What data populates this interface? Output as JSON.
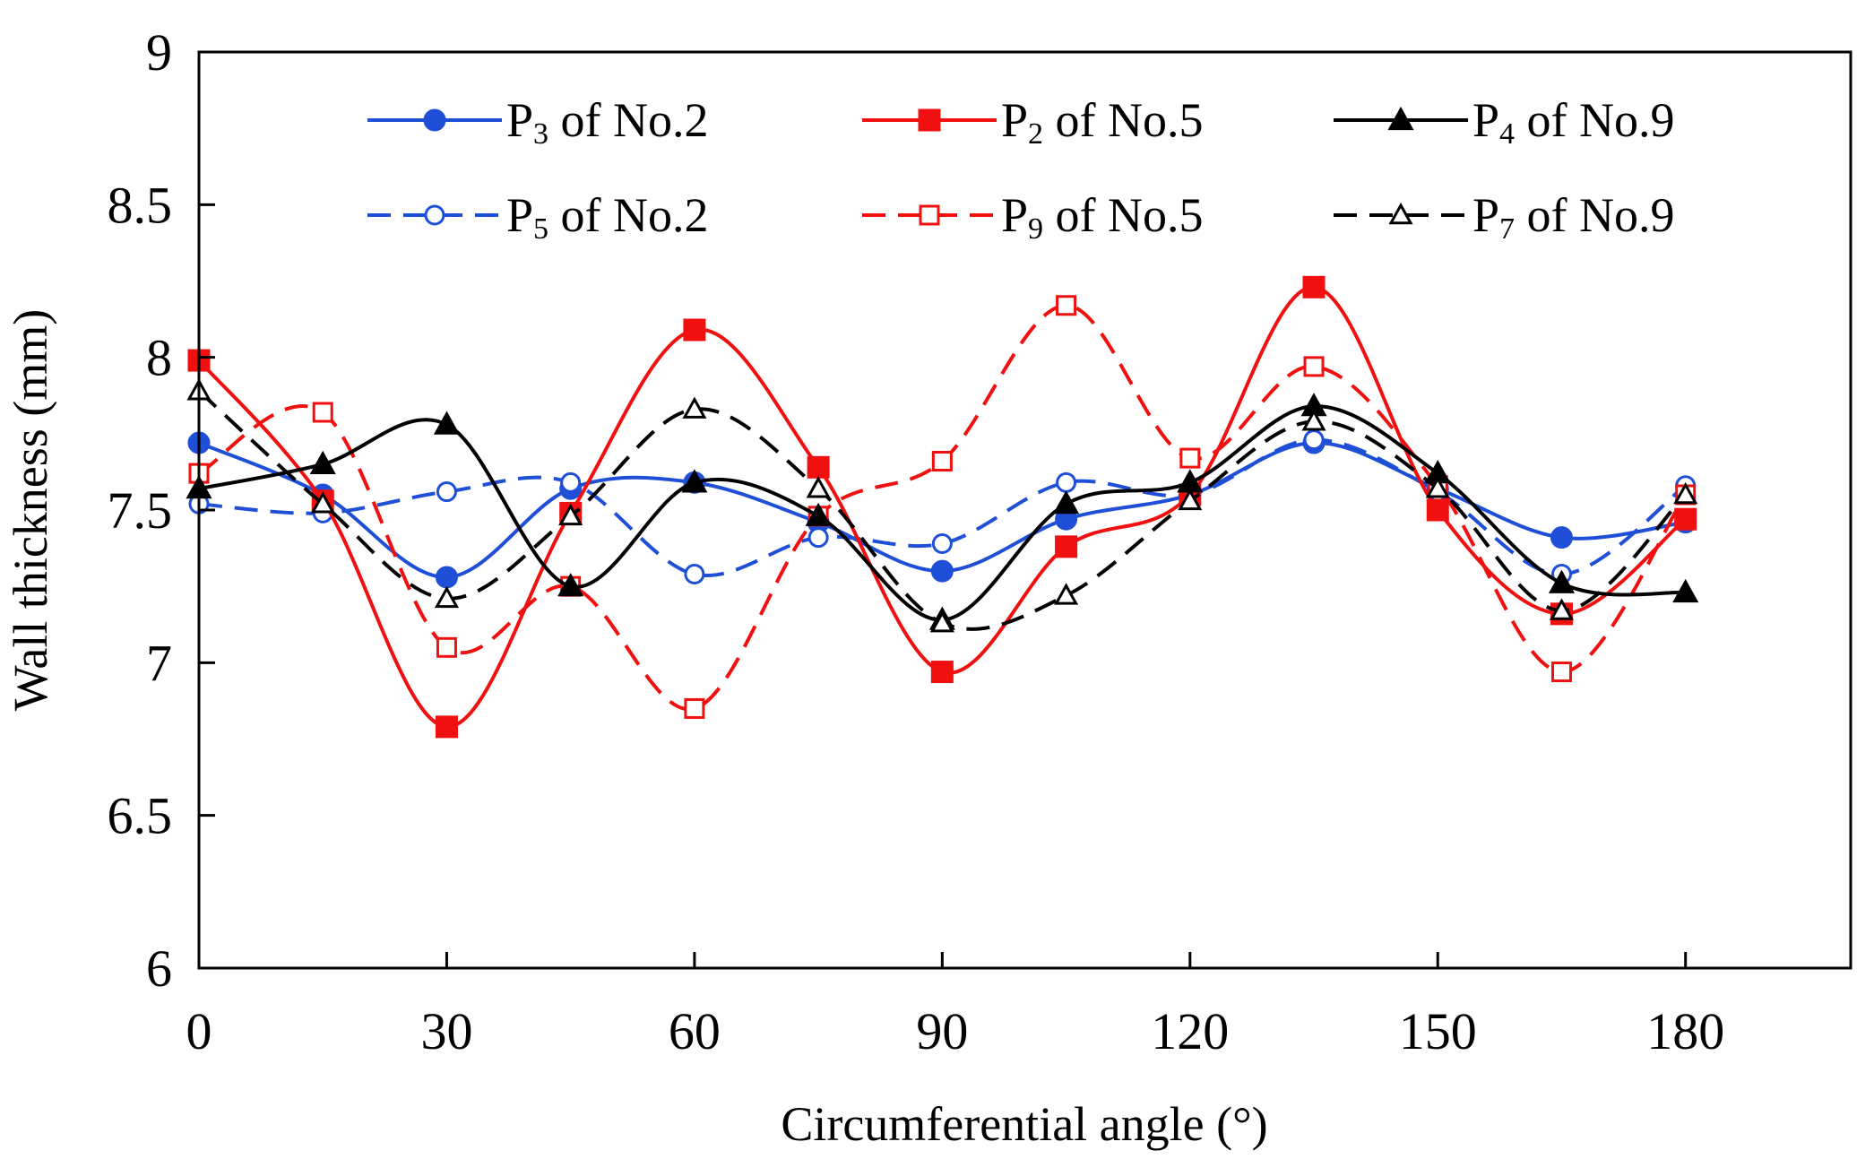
{
  "chart_data": {
    "type": "line",
    "title": "",
    "xlabel": "Circumferential angle (°)",
    "ylabel": "Wall thickness (mm)",
    "xlim": [
      0,
      200
    ],
    "ylim": [
      6,
      9
    ],
    "x_ticks": [
      "0",
      "30",
      "60",
      "90",
      "120",
      "150",
      "180"
    ],
    "x_tick_values": [
      0,
      30,
      60,
      90,
      120,
      150,
      180
    ],
    "y_ticks": [
      "6",
      "6.5",
      "7",
      "7.5",
      "8",
      "8.5",
      "9"
    ],
    "y_tick_values": [
      6,
      6.5,
      7,
      7.5,
      8,
      8.5,
      9
    ],
    "grid": false,
    "legend_position": "top",
    "series": [
      {
        "name": "P3 of No.2",
        "label": {
          "p": "P",
          "sub": "3",
          "rest": " of No.2"
        },
        "color": "#1f4fd6",
        "dashed": false,
        "marker": "circle",
        "filled": true,
        "x": [
          0,
          15,
          30,
          45,
          60,
          75,
          90,
          105,
          120,
          135,
          150,
          165,
          180
        ],
        "y": [
          7.72,
          7.55,
          7.28,
          7.57,
          7.59,
          7.46,
          7.3,
          7.47,
          7.55,
          7.72,
          7.57,
          7.41,
          7.46
        ]
      },
      {
        "name": "P5 of No.2",
        "label": {
          "p": "P",
          "sub": "5",
          "rest": " of No.2"
        },
        "color": "#1f4fd6",
        "dashed": true,
        "marker": "circle",
        "filled": false,
        "x": [
          0,
          15,
          30,
          45,
          60,
          75,
          90,
          105,
          120,
          135,
          150,
          165,
          180
        ],
        "y": [
          7.52,
          7.49,
          7.56,
          7.59,
          7.29,
          7.41,
          7.39,
          7.59,
          7.55,
          7.73,
          7.56,
          7.29,
          7.58
        ]
      },
      {
        "name": "P2 of No.5",
        "label": {
          "p": "P",
          "sub": "2",
          "rest": " of No.5"
        },
        "color": "#f01010",
        "dashed": false,
        "marker": "square",
        "filled": true,
        "x": [
          0,
          15,
          30,
          45,
          60,
          75,
          90,
          105,
          120,
          135,
          150,
          165,
          180
        ],
        "y": [
          7.99,
          7.53,
          6.79,
          7.49,
          8.09,
          7.64,
          6.97,
          7.38,
          7.55,
          8.23,
          7.5,
          7.16,
          7.47
        ]
      },
      {
        "name": "P9 of No.5",
        "label": {
          "p": "P",
          "sub": "9",
          "rest": " of No.5"
        },
        "color": "#f01010",
        "dashed": true,
        "marker": "square",
        "filled": false,
        "x": [
          0,
          15,
          30,
          45,
          60,
          75,
          90,
          105,
          120,
          135,
          150,
          165,
          180
        ],
        "y": [
          7.62,
          7.82,
          7.05,
          7.25,
          6.85,
          7.48,
          7.66,
          8.17,
          7.67,
          7.97,
          7.58,
          6.97,
          7.55
        ]
      },
      {
        "name": "P4 of No.9",
        "label": {
          "p": "P",
          "sub": "4",
          "rest": " of No.9"
        },
        "color": "#000000",
        "dashed": false,
        "marker": "triangle",
        "filled": true,
        "x": [
          0,
          15,
          30,
          45,
          60,
          75,
          90,
          105,
          120,
          135,
          150,
          165,
          180
        ],
        "y": [
          7.57,
          7.65,
          7.78,
          7.25,
          7.59,
          7.48,
          7.14,
          7.52,
          7.59,
          7.84,
          7.62,
          7.26,
          7.23
        ]
      },
      {
        "name": "P7 of No.9",
        "label": {
          "p": "P",
          "sub": "7",
          "rest": " of No.9"
        },
        "color": "#000000",
        "dashed": true,
        "marker": "triangle",
        "filled": false,
        "x": [
          0,
          15,
          30,
          45,
          60,
          75,
          90,
          105,
          120,
          135,
          150,
          165,
          180
        ],
        "y": [
          7.89,
          7.52,
          7.21,
          7.48,
          7.83,
          7.57,
          7.13,
          7.22,
          7.53,
          7.79,
          7.57,
          7.17,
          7.55
        ]
      }
    ]
  }
}
